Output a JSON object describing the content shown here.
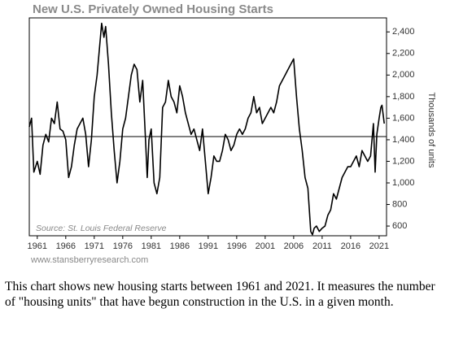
{
  "chart_data": {
    "type": "line",
    "title": "New U.S. Privately Owned Housing Starts",
    "y_label": "Thousands of units",
    "source": "Source: St. Louis Federal Reserve",
    "footer": "www.stansberryresearch.com",
    "color": "#000000",
    "x": [
      1959.6,
      1960.0,
      1960.4,
      1961.0,
      1961.5,
      1962.0,
      1962.5,
      1963.0,
      1963.5,
      1964.0,
      1964.5,
      1965.0,
      1965.5,
      1966.0,
      1966.5,
      1967.0,
      1967.5,
      1968.0,
      1968.5,
      1969.0,
      1969.5,
      1970.0,
      1970.5,
      1971.0,
      1971.5,
      1972.0,
      1972.3,
      1972.7,
      1973.0,
      1973.5,
      1974.0,
      1974.5,
      1975.0,
      1975.5,
      1976.0,
      1976.5,
      1977.0,
      1977.5,
      1978.0,
      1978.5,
      1979.0,
      1979.5,
      1980.0,
      1980.3,
      1980.6,
      1981.0,
      1981.5,
      1982.0,
      1982.5,
      1983.0,
      1983.5,
      1984.0,
      1984.5,
      1985.0,
      1985.5,
      1986.0,
      1986.5,
      1987.0,
      1987.5,
      1988.0,
      1988.5,
      1989.0,
      1989.5,
      1990.0,
      1990.5,
      1991.0,
      1991.5,
      1992.0,
      1992.5,
      1993.0,
      1993.5,
      1994.0,
      1994.5,
      1995.0,
      1995.5,
      1996.0,
      1996.5,
      1997.0,
      1997.5,
      1998.0,
      1998.5,
      1999.0,
      1999.5,
      2000.0,
      2000.5,
      2001.0,
      2001.5,
      2002.0,
      2002.5,
      2003.0,
      2003.5,
      2004.0,
      2004.5,
      2005.0,
      2005.5,
      2006.0,
      2006.5,
      2007.0,
      2007.5,
      2008.0,
      2008.5,
      2009.0,
      2009.3,
      2009.6,
      2010.0,
      2010.5,
      2011.0,
      2011.5,
      2012.0,
      2012.5,
      2013.0,
      2013.5,
      2014.0,
      2014.5,
      2015.0,
      2015.5,
      2016.0,
      2016.5,
      2017.0,
      2017.5,
      2018.0,
      2018.5,
      2019.0,
      2019.5,
      2020.0,
      2020.3,
      2020.6,
      2021.0,
      2021.3,
      2021.5,
      2021.9
    ],
    "values": [
      1520,
      1600,
      1100,
      1200,
      1080,
      1350,
      1450,
      1380,
      1600,
      1550,
      1750,
      1500,
      1480,
      1400,
      1050,
      1150,
      1350,
      1500,
      1550,
      1600,
      1450,
      1150,
      1400,
      1800,
      2000,
      2300,
      2480,
      2350,
      2450,
      2100,
      1650,
      1300,
      1000,
      1200,
      1500,
      1600,
      1800,
      2000,
      2100,
      2050,
      1750,
      1950,
      1400,
      1050,
      1400,
      1500,
      1000,
      900,
      1050,
      1700,
      1750,
      1950,
      1800,
      1750,
      1650,
      1900,
      1800,
      1650,
      1550,
      1450,
      1500,
      1400,
      1300,
      1500,
      1200,
      900,
      1050,
      1250,
      1200,
      1200,
      1300,
      1450,
      1400,
      1300,
      1350,
      1450,
      1500,
      1450,
      1500,
      1600,
      1650,
      1800,
      1650,
      1700,
      1550,
      1600,
      1650,
      1700,
      1650,
      1750,
      1900,
      1950,
      2000,
      2050,
      2100,
      2150,
      1800,
      1500,
      1300,
      1050,
      950,
      550,
      520,
      580,
      600,
      550,
      580,
      600,
      700,
      750,
      900,
      850,
      950,
      1050,
      1100,
      1150,
      1150,
      1200,
      1250,
      1150,
      1300,
      1250,
      1200,
      1250,
      1550,
      1100,
      1450,
      1600,
      1700,
      1720,
      1550
    ],
    "reference_value": 1430,
    "xlim": [
      1959.6,
      2022.3
    ],
    "ylim": [
      510,
      2530
    ],
    "xticks": [
      1961,
      1966,
      1971,
      1976,
      1981,
      1986,
      1991,
      1996,
      2001,
      2006,
      2011,
      2016,
      2021
    ],
    "yticks": [
      {
        "value": 600,
        "label": "600"
      },
      {
        "value": 800,
        "label": "800"
      },
      {
        "value": 1000,
        "label": "1,000"
      },
      {
        "value": 1200,
        "label": "1,200"
      },
      {
        "value": 1400,
        "label": "1,400"
      },
      {
        "value": 1600,
        "label": "1,600"
      },
      {
        "value": 1800,
        "label": "1,800"
      },
      {
        "value": 2000,
        "label": "2,000"
      },
      {
        "value": 2200,
        "label": "2,200"
      },
      {
        "value": 2400,
        "label": "2,400"
      }
    ],
    "caption": "This chart shows new housing starts between 1961 and 2021. It measures the number of \"housing units\" that have begun construction in the U.S. in a given month."
  }
}
